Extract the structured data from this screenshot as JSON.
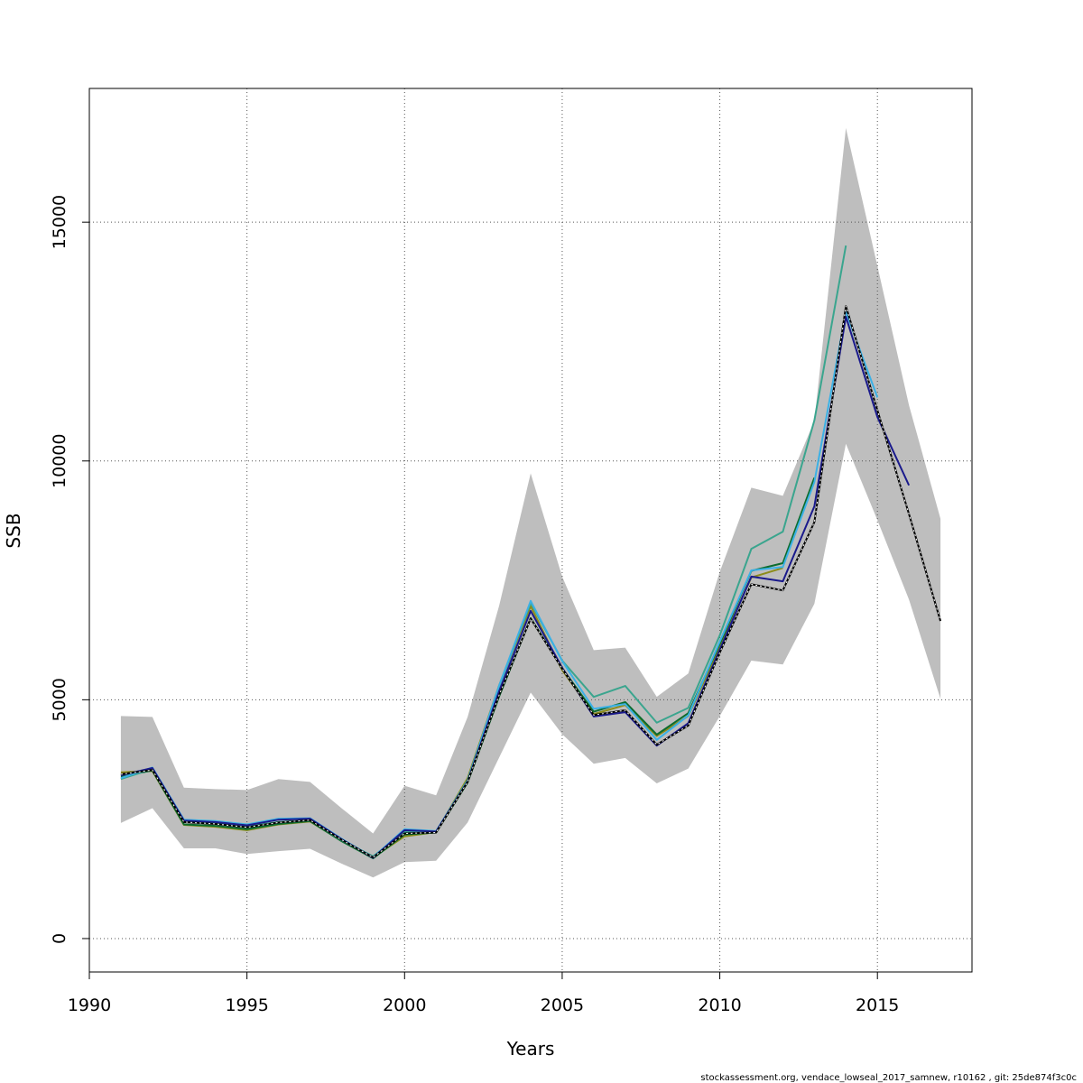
{
  "chart_data": {
    "type": "line",
    "title": "",
    "xlabel": "Years",
    "ylabel": "SSB",
    "xlim": [
      1990,
      2018
    ],
    "ylim": [
      -700,
      17800
    ],
    "xticks": [
      1990,
      1995,
      2000,
      2005,
      2010,
      2015
    ],
    "yticks": [
      0,
      5000,
      10000,
      15000
    ],
    "grid": true,
    "legend": "none",
    "band": {
      "color": "#bebebe",
      "x": [
        1991,
        1992,
        1993,
        1994,
        1995,
        1996,
        1997,
        1998,
        1999,
        2000,
        2001,
        2002,
        2003,
        2004,
        2005,
        2006,
        2007,
        2008,
        2009,
        2010,
        2011,
        2012,
        2013,
        2014,
        2015,
        2016,
        2017
      ],
      "upper": [
        4660,
        4640,
        3160,
        3130,
        3110,
        3340,
        3280,
        2730,
        2200,
        3200,
        3000,
        4640,
        6970,
        9740,
        7580,
        6040,
        6090,
        5060,
        5550,
        7680,
        9440,
        9270,
        10840,
        16970,
        14080,
        11170,
        8790
      ],
      "lower": [
        2420,
        2730,
        1890,
        1890,
        1770,
        1830,
        1880,
        1570,
        1280,
        1600,
        1630,
        2430,
        3790,
        5150,
        4280,
        3660,
        3780,
        3250,
        3560,
        4660,
        5820,
        5740,
        7010,
        10360,
        8760,
        7100,
        5020
      ]
    },
    "series": [
      {
        "color": "#000000",
        "dashed": false,
        "x": [
          1991,
          1992,
          1993,
          1994,
          1995,
          1996,
          1997,
          1998,
          1999,
          2000,
          2001,
          2002,
          2003,
          2004,
          2005,
          2006,
          2007,
          2008,
          2009,
          2010,
          2011,
          2012,
          2013,
          2014,
          2015,
          2016,
          2017
        ],
        "values": [
          3440,
          3530,
          2440,
          2400,
          2330,
          2430,
          2480,
          2070,
          1700,
          2200,
          2220,
          3280,
          5100,
          6700,
          5650,
          4680,
          4780,
          4060,
          4460,
          5990,
          7420,
          7290,
          8720,
          13240,
          11060,
          8890,
          6650
        ]
      },
      {
        "color": "#1a1a8c",
        "x": [
          1991,
          1992,
          1993,
          1994,
          1995,
          1996,
          1997,
          1998,
          1999,
          2000,
          2001,
          2002,
          2003,
          2004,
          2005,
          2006,
          2007,
          2008,
          2009,
          2010,
          2011,
          2012,
          2013,
          2014,
          2015,
          2016
        ],
        "values": [
          3420,
          3570,
          2470,
          2440,
          2370,
          2490,
          2510,
          2080,
          1690,
          2270,
          2240,
          3290,
          5180,
          6860,
          5670,
          4650,
          4740,
          4040,
          4510,
          6050,
          7580,
          7480,
          9050,
          13020,
          10920,
          9490
        ]
      },
      {
        "color": "#3bb1e6",
        "x": [
          1991,
          1992,
          1993,
          1994,
          1995,
          1996,
          1997,
          1998,
          1999,
          2000,
          2001,
          2002,
          2003,
          2004,
          2005,
          2006,
          2007,
          2008,
          2009,
          2010,
          2011,
          2012,
          2013,
          2014,
          2015
        ],
        "values": [
          3360,
          3580,
          2490,
          2460,
          2390,
          2510,
          2520,
          2090,
          1700,
          2290,
          2250,
          3300,
          5300,
          7070,
          5810,
          4810,
          4910,
          4160,
          4670,
          6220,
          7710,
          7780,
          9560,
          13120,
          11330
        ]
      },
      {
        "color": "#3aa58e",
        "x": [
          1991,
          1992,
          1993,
          1994,
          1995,
          1996,
          1997,
          1998,
          1999,
          2000,
          2001,
          2002,
          2003,
          2004,
          2005,
          2006,
          2007,
          2008,
          2009,
          2010,
          2011,
          2012,
          2013,
          2014
        ],
        "values": [
          3340,
          3550,
          2450,
          2420,
          2350,
          2440,
          2480,
          2060,
          1720,
          2230,
          2240,
          3320,
          5280,
          7030,
          5820,
          5060,
          5290,
          4520,
          4830,
          6350,
          8160,
          8520,
          10850,
          14510
        ]
      },
      {
        "color": "#0c6c2e",
        "x": [
          1991,
          1992,
          1993,
          1994,
          1995,
          1996,
          1997,
          1998,
          1999,
          2000,
          2001,
          2002,
          2003,
          2004,
          2005,
          2006,
          2007,
          2008,
          2009,
          2010,
          2011,
          2012,
          2013
        ],
        "values": [
          3390,
          3520,
          2390,
          2360,
          2290,
          2400,
          2460,
          2040,
          1680,
          2180,
          2220,
          3270,
          5070,
          6710,
          5660,
          4750,
          4950,
          4270,
          4720,
          6170,
          7700,
          7860,
          9650
        ]
      },
      {
        "color": "#8c8c1a",
        "x": [
          1991,
          1992,
          1993,
          1994,
          1995,
          1996,
          1997,
          1998,
          1999,
          2000,
          2001,
          2002,
          2003,
          2004,
          2005,
          2006,
          2007,
          2008,
          2009,
          2010,
          2011,
          2012
        ],
        "values": [
          3480,
          3510,
          2380,
          2340,
          2270,
          2390,
          2450,
          2050,
          1700,
          2140,
          2230,
          3360,
          5300,
          6960,
          5620,
          4700,
          4890,
          4240,
          4660,
          6110,
          7560,
          7760
        ]
      }
    ],
    "footer": "stockassessment.org, vendace_lowseal_2017_samnew, r10162 , git: 25de874f3c0c"
  }
}
